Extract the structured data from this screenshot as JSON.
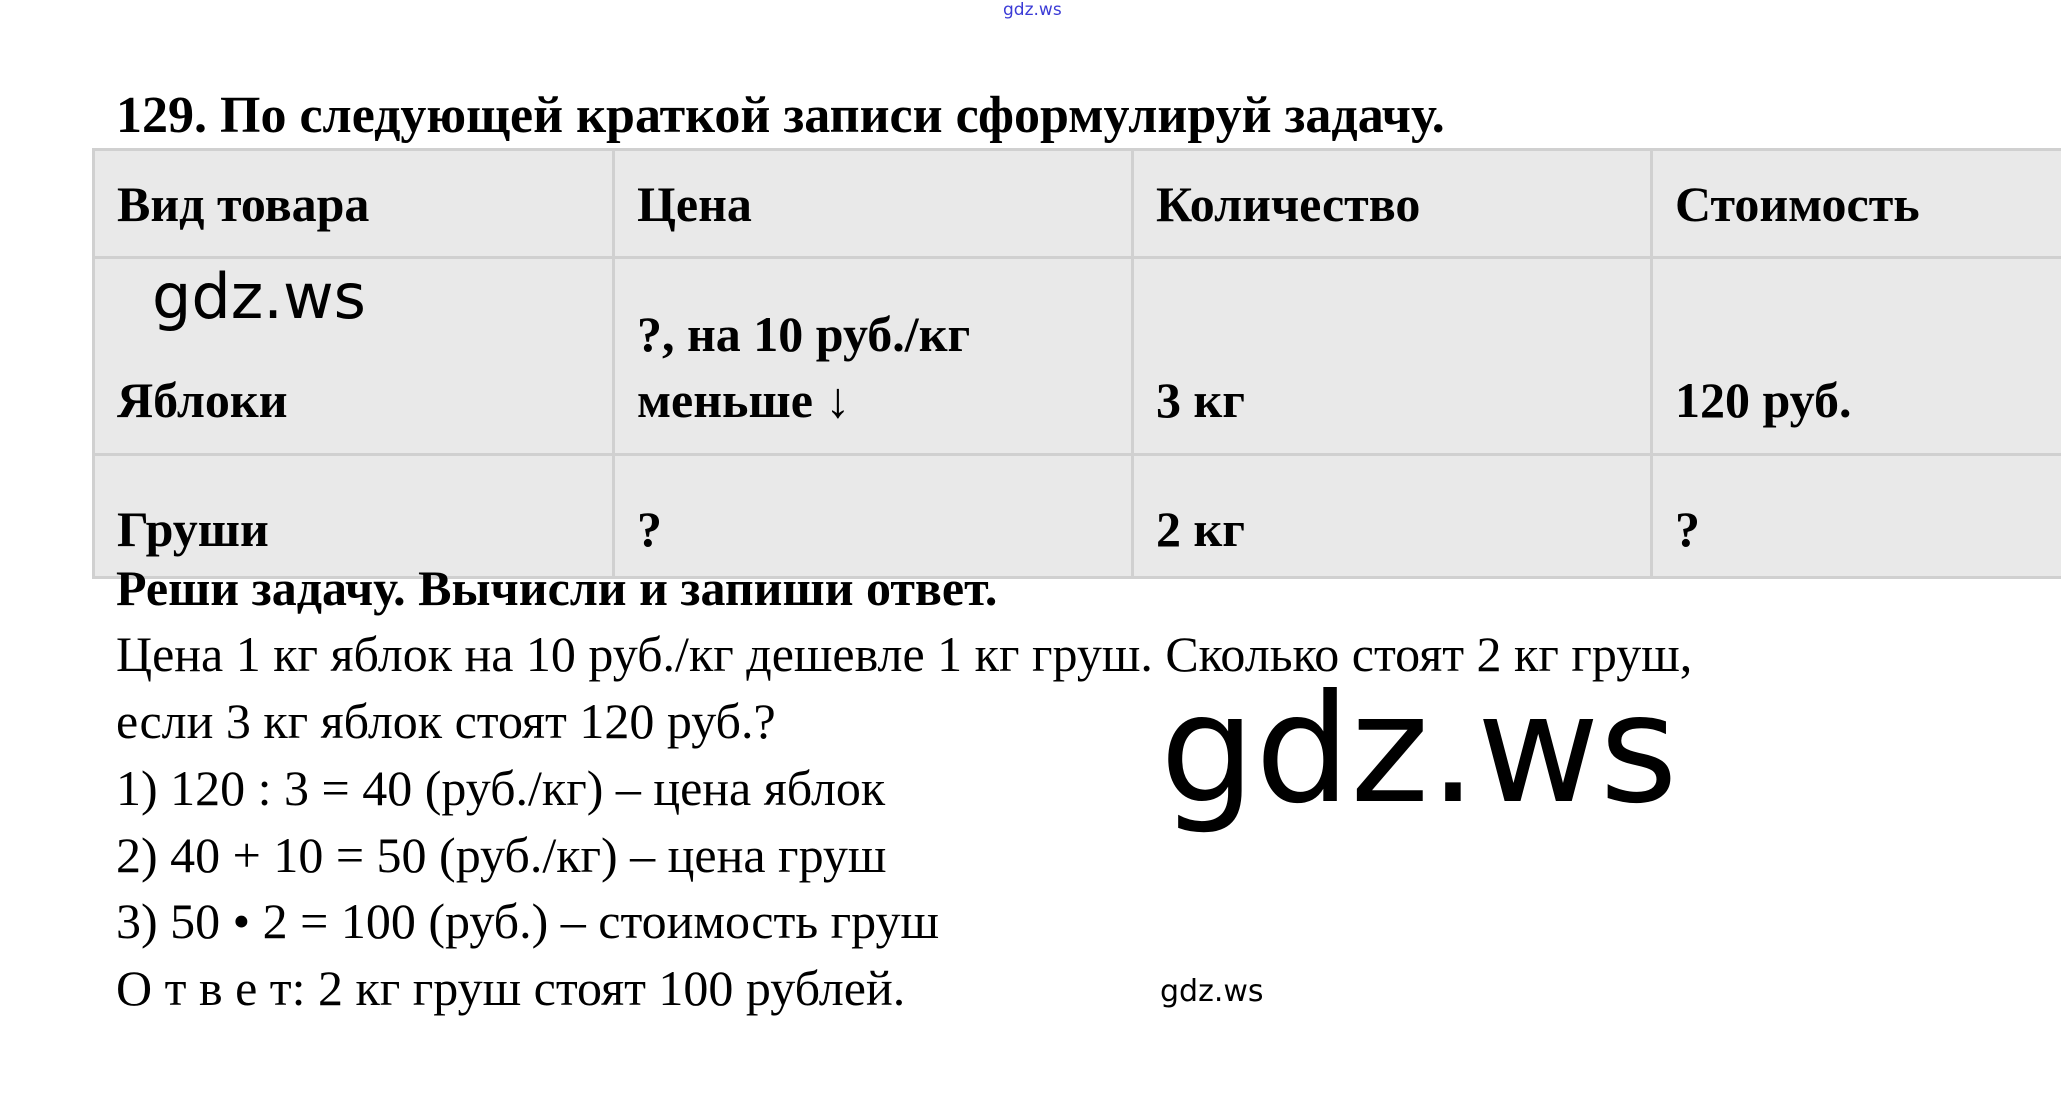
{
  "watermark": "gdz.ws",
  "title": "129. По следующей краткой записи сформулируй задачу.",
  "table": {
    "headers": [
      "Вид товара",
      "Цена",
      "Количество",
      "Стоимость"
    ],
    "rows": [
      [
        "Яблоки",
        "?, на 10 руб./кг меньше ↓",
        "3 кг",
        "120 руб."
      ],
      [
        "Груши",
        "?",
        "2 кг",
        "?"
      ]
    ]
  },
  "solution": {
    "heading": "Реши задачу. Вычисли и запиши ответ.",
    "problem_line1": "Цена 1 кг яблок на 10 руб./кг дешевле 1 кг груш. Сколько стоят 2 кг груш,",
    "problem_line2": "если 3 кг яблок стоят 120 руб.?",
    "steps": [
      "1) 120 : 3 = 40 (руб./кг) – цена яблок",
      "2) 40 + 10 = 50 (руб./кг) – цена груш",
      "3) 50 • 2 = 100 (руб.) – стоимость груш"
    ],
    "answer": "О т в е т: 2 кг груш стоят 100 рублей."
  },
  "colors": {
    "table_bg": "#e9e9e9",
    "table_border": "#d0d0d0",
    "top_watermark": "#3b3bd6"
  }
}
